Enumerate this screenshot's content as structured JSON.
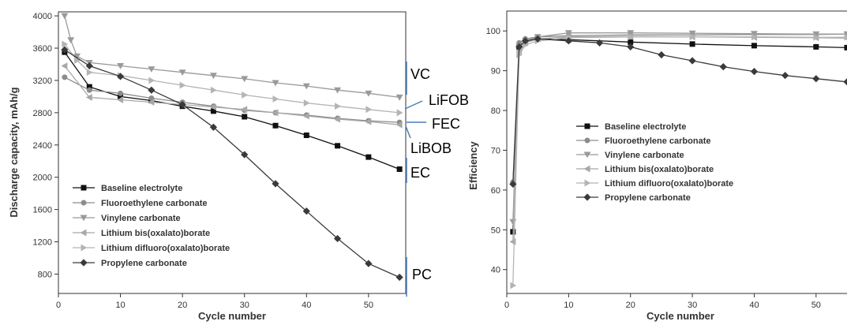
{
  "colors": {
    "baseline": "#111111",
    "fec": "#8c8c8c",
    "vc": "#9a9a9a",
    "libob": "#a8a8a8",
    "lifob": "#b4b4b4",
    "pc": "#3a3a3a",
    "annotation_line": "#4a7ebb"
  },
  "chart_data": [
    {
      "type": "line",
      "title": "",
      "xlabel": "Cycle number",
      "ylabel": "Discharge capacity, mAh/g",
      "xlim": [
        0,
        56
      ],
      "ylim": [
        560,
        4050
      ],
      "xticks": [
        0,
        10,
        20,
        30,
        40,
        50
      ],
      "yticks": [
        800,
        1200,
        1600,
        2000,
        2400,
        2800,
        3200,
        3600,
        4000
      ],
      "legend_position": "bottom-left",
      "series": [
        {
          "name": "Baseline electrolyte",
          "marker": "square",
          "color_key": "baseline",
          "x": [
            1,
            5,
            10,
            15,
            20,
            25,
            30,
            35,
            40,
            45,
            50,
            55
          ],
          "y": [
            3550,
            3120,
            3000,
            2950,
            2880,
            2820,
            2750,
            2640,
            2520,
            2390,
            2250,
            2100
          ]
        },
        {
          "name": "Fluoroethylene carbonate",
          "marker": "circle",
          "color_key": "fec",
          "x": [
            1,
            5,
            10,
            15,
            20,
            25,
            30,
            35,
            40,
            45,
            50,
            55
          ],
          "y": [
            3240,
            3080,
            3040,
            2980,
            2930,
            2880,
            2830,
            2800,
            2770,
            2730,
            2700,
            2680
          ]
        },
        {
          "name": "Vinylene carbonate",
          "marker": "triangle-down",
          "color_key": "vc",
          "x": [
            1,
            2,
            3,
            5,
            10,
            15,
            20,
            25,
            30,
            35,
            40,
            45,
            50,
            55
          ],
          "y": [
            4000,
            3700,
            3500,
            3420,
            3380,
            3340,
            3300,
            3260,
            3220,
            3170,
            3130,
            3080,
            3040,
            2990
          ]
        },
        {
          "name": "Lithium bis(oxalato)borate",
          "marker": "triangle-left",
          "color_key": "libob",
          "x": [
            1,
            5,
            10,
            15,
            20,
            25,
            30,
            35,
            40,
            45,
            50,
            55
          ],
          "y": [
            3380,
            2990,
            2960,
            2930,
            2900,
            2870,
            2840,
            2800,
            2760,
            2720,
            2690,
            2650
          ]
        },
        {
          "name": "Lithium difluoro(oxalato)borate",
          "marker": "triangle-right",
          "color_key": "lifob",
          "x": [
            1,
            3,
            5,
            10,
            15,
            20,
            25,
            30,
            35,
            40,
            45,
            50,
            55
          ],
          "y": [
            3650,
            3450,
            3300,
            3260,
            3200,
            3140,
            3080,
            3020,
            2970,
            2920,
            2880,
            2840,
            2800
          ]
        },
        {
          "name": "Propylene carbonate",
          "marker": "diamond",
          "color_key": "pc",
          "x": [
            1,
            5,
            10,
            15,
            20,
            25,
            30,
            35,
            40,
            45,
            50,
            55
          ],
          "y": [
            3580,
            3380,
            3250,
            3080,
            2900,
            2620,
            2280,
            1920,
            1580,
            1240,
            930,
            760
          ]
        }
      ],
      "annotations": [
        "VC",
        "LiFOB",
        "FEC",
        "LiBOB",
        "EC",
        "PC"
      ]
    },
    {
      "type": "line",
      "title": "",
      "xlabel": "Cycle number",
      "ylabel": "Efficiency",
      "xlim": [
        0,
        55
      ],
      "ylim": [
        34,
        105
      ],
      "xticks": [
        0,
        10,
        20,
        30,
        40,
        50
      ],
      "yticks": [
        40,
        50,
        60,
        70,
        80,
        90,
        100
      ],
      "legend_position": "center-left",
      "series": [
        {
          "name": "Baseline electrolyte",
          "marker": "square",
          "color_key": "baseline",
          "x": [
            1,
            2,
            3,
            5,
            10,
            20,
            30,
            40,
            50,
            55
          ],
          "y": [
            49.5,
            96,
            97.5,
            98,
            97.8,
            97.2,
            96.7,
            96.3,
            96,
            95.8
          ]
        },
        {
          "name": "Fluoroethylene carbonate",
          "marker": "circle",
          "color_key": "fec",
          "x": [
            1,
            2,
            3,
            5,
            10,
            20,
            30,
            40,
            50,
            55
          ],
          "y": [
            62,
            97,
            98,
            98.5,
            98.8,
            99,
            99,
            99.1,
            99.1,
            99.2
          ]
        },
        {
          "name": "Vinylene carbonate",
          "marker": "triangle-down",
          "color_key": "vc",
          "x": [
            1,
            2,
            3,
            5,
            10,
            20,
            30,
            40,
            50,
            55
          ],
          "y": [
            52,
            96,
            97.5,
            98.5,
            99.5,
            99.5,
            99.4,
            99.3,
            99.2,
            99.2
          ]
        },
        {
          "name": "Lithium bis(oxalato)borate",
          "marker": "triangle-left",
          "color_key": "libob",
          "x": [
            1,
            2,
            3,
            5,
            10,
            20,
            30,
            40,
            50,
            55
          ],
          "y": [
            47,
            95,
            97,
            98,
            98.5,
            98.6,
            98.5,
            98.4,
            98.3,
            98.2
          ]
        },
        {
          "name": "Lithium difluoro(oxalato)borate",
          "marker": "triangle-right",
          "color_key": "lifob",
          "x": [
            1,
            2,
            3,
            5,
            10,
            20,
            30,
            40,
            50,
            55
          ],
          "y": [
            36,
            94,
            96.5,
            97.5,
            98.3,
            98.5,
            98.5,
            98.5,
            98.4,
            98.4
          ]
        },
        {
          "name": "Propylene carbonate",
          "marker": "diamond",
          "color_key": "pc",
          "x": [
            1,
            2,
            3,
            5,
            10,
            15,
            20,
            25,
            30,
            35,
            40,
            45,
            50,
            55
          ],
          "y": [
            61.5,
            96,
            97.5,
            98,
            97.5,
            97,
            96,
            94,
            92.5,
            91,
            89.8,
            88.8,
            88,
            87.2
          ]
        }
      ]
    }
  ]
}
